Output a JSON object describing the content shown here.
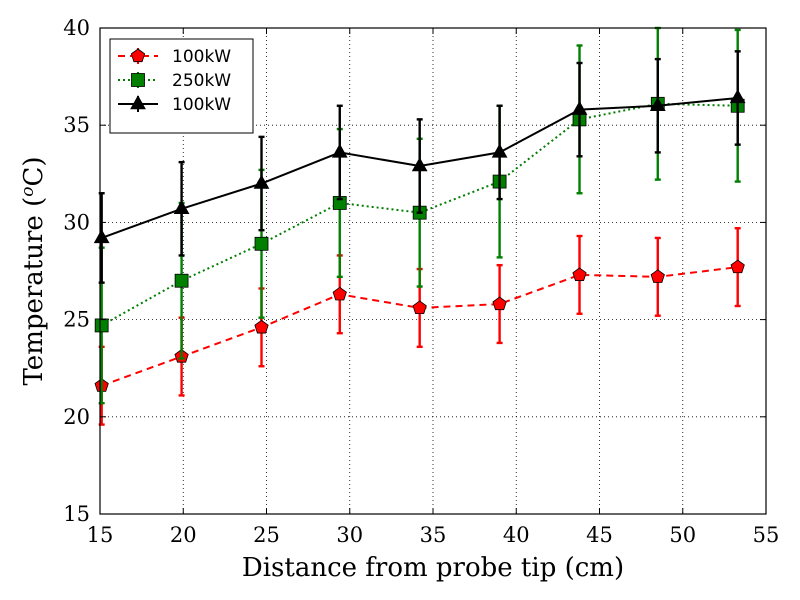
{
  "chart_data": {
    "type": "line",
    "xlabel": "Distance from probe tip (cm)",
    "ylabel_text": "Temperature (",
    "ylabel_super": "o",
    "ylabel_unit": "C)",
    "xlim": [
      15,
      55
    ],
    "ylim": [
      15,
      40
    ],
    "xticks": [
      "15",
      "20",
      "25",
      "30",
      "35",
      "40",
      "45",
      "50",
      "55"
    ],
    "yticks": [
      "15",
      "20",
      "25",
      "30",
      "35",
      "40"
    ],
    "grid": true,
    "legend_position": "upper-left",
    "series": [
      {
        "name": "100kW",
        "color": "#ff0000",
        "marker": "pentagon",
        "linestyle": "dashed",
        "x": [
          15.1,
          19.9,
          24.7,
          29.4,
          34.2,
          39.0,
          43.8,
          48.5,
          53.3
        ],
        "y": [
          21.6,
          23.1,
          24.6,
          26.3,
          25.6,
          25.8,
          27.3,
          27.2,
          27.7
        ],
        "err": [
          2.0,
          2.0,
          2.0,
          2.0,
          2.0,
          2.0,
          2.0,
          2.0,
          2.0
        ]
      },
      {
        "name": "250kW",
        "color": "#007f00",
        "marker": "square",
        "linestyle": "dotted",
        "x": [
          15.1,
          19.9,
          24.7,
          29.4,
          34.2,
          39.0,
          43.8,
          48.5,
          53.3
        ],
        "y": [
          24.7,
          27.0,
          28.9,
          31.0,
          30.5,
          32.1,
          35.3,
          36.1,
          36.0
        ],
        "err": [
          4.0,
          4.0,
          3.8,
          3.8,
          3.8,
          3.9,
          3.8,
          3.9,
          3.9
        ]
      },
      {
        "name": "100kW",
        "color": "#000000",
        "marker": "triangle",
        "linestyle": "solid",
        "x": [
          15.1,
          19.9,
          24.7,
          29.4,
          34.2,
          39.0,
          43.8,
          48.5,
          53.3
        ],
        "y": [
          29.2,
          30.7,
          32.0,
          33.6,
          32.9,
          33.6,
          35.8,
          36.0,
          36.4
        ],
        "err": [
          2.3,
          2.4,
          2.4,
          2.4,
          2.4,
          2.4,
          2.4,
          2.4,
          2.4
        ]
      }
    ]
  }
}
